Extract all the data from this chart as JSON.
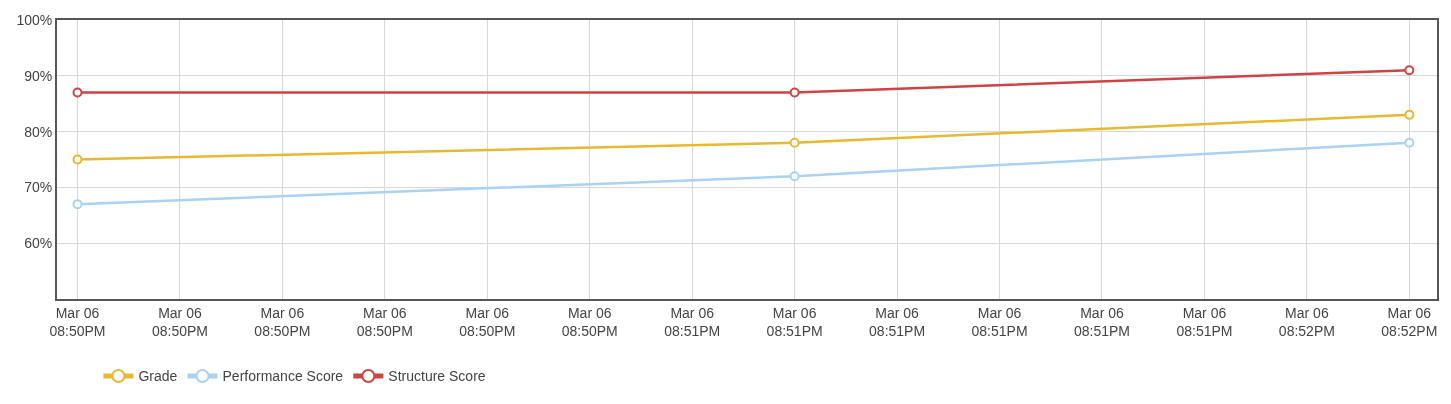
{
  "chart_data": {
    "type": "line",
    "categories": [
      "Mar 06\n08:50PM",
      "Mar 06\n08:50PM",
      "Mar 06\n08:50PM",
      "Mar 06\n08:50PM",
      "Mar 06\n08:50PM",
      "Mar 06\n08:50PM",
      "Mar 06\n08:51PM",
      "Mar 06\n08:51PM",
      "Mar 06\n08:51PM",
      "Mar 06\n08:51PM",
      "Mar 06\n08:51PM",
      "Mar 06\n08:51PM",
      "Mar 06\n08:52PM",
      "Mar 06\n08:52PM"
    ],
    "ylim": [
      50,
      100
    ],
    "yticks": [
      {
        "value": 50,
        "label": null
      },
      {
        "value": 60,
        "label": "60%"
      },
      {
        "value": 70,
        "label": "70%"
      },
      {
        "value": 80,
        "label": "80%"
      },
      {
        "value": 90,
        "label": "90%"
      },
      {
        "value": 100,
        "label": "100%"
      }
    ],
    "series": [
      {
        "name": "Grade",
        "color": "#e8b92f",
        "values": [
          75,
          null,
          null,
          null,
          null,
          null,
          null,
          78,
          null,
          null,
          null,
          null,
          null,
          83
        ]
      },
      {
        "name": "Performance Score",
        "color": "#a9d2f4",
        "values": [
          67,
          null,
          null,
          null,
          null,
          null,
          null,
          72,
          null,
          null,
          null,
          null,
          null,
          78
        ]
      },
      {
        "name": "Structure Score",
        "color": "#cc4444",
        "values": [
          87,
          null,
          null,
          null,
          null,
          null,
          null,
          87,
          null,
          null,
          null,
          null,
          null,
          91
        ]
      }
    ],
    "grid": true,
    "legend": "bottom left",
    "marker": "circle",
    "line_style": "solid"
  }
}
